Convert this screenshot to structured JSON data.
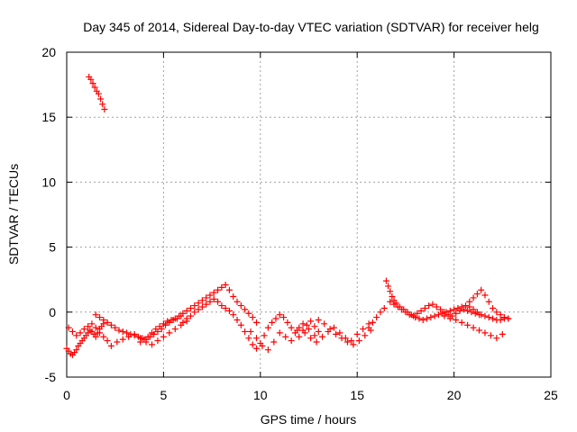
{
  "chart_data": {
    "type": "scatter",
    "title": "Day 345 of 2014, Sidereal Day-to-day VTEC variation (SDTVAR) for receiver helg",
    "xlabel": "GPS time / hours",
    "ylabel": "SDTVAR / TECUs",
    "xlim": [
      0,
      25
    ],
    "ylim": [
      -5,
      20
    ],
    "xticks": [
      0,
      5,
      10,
      15,
      20,
      25
    ],
    "xtick_labels": [
      "0",
      "5",
      "10",
      "15",
      "20",
      "25"
    ],
    "yticks": [
      -5,
      0,
      5,
      10,
      15,
      20
    ],
    "ytick_labels": [
      "-5",
      "0",
      "5",
      "10",
      "15",
      "20"
    ],
    "grid": true,
    "marker": "+",
    "color": "#ff0000",
    "series": [
      {
        "name": "SDTVAR",
        "x": [
          0.0,
          0.1,
          0.2,
          0.3,
          0.4,
          0.5,
          0.6,
          0.7,
          0.8,
          0.9,
          1.0,
          1.1,
          1.2,
          1.3,
          1.4,
          1.5,
          1.6,
          1.7,
          1.8,
          1.9,
          0.1,
          0.3,
          0.5,
          0.7,
          0.9,
          1.1,
          1.3,
          1.5,
          1.7,
          1.9,
          2.1,
          1.15,
          1.25,
          1.35,
          1.45,
          1.55,
          1.65,
          1.75,
          1.85,
          1.95,
          1.5,
          1.7,
          1.9,
          2.1,
          2.3,
          2.5,
          2.7,
          2.9,
          3.1,
          3.3,
          3.5,
          3.7,
          3.9,
          4.1,
          4.3,
          4.5,
          4.7,
          4.9,
          5.1,
          5.3,
          5.5,
          5.7,
          5.9,
          2.3,
          2.6,
          2.9,
          3.2,
          3.5,
          3.8,
          4.1,
          4.4,
          4.7,
          5.0,
          5.3,
          5.6,
          5.9,
          6.2,
          3.8,
          4.0,
          4.2,
          4.4,
          4.6,
          4.8,
          5.0,
          5.2,
          5.4,
          5.6,
          5.8,
          6.0,
          6.2,
          6.4,
          6.6,
          6.8,
          7.0,
          7.2,
          7.4,
          7.6,
          7.8,
          8.0,
          8.2,
          8.4,
          8.6,
          8.8,
          9.0,
          9.2,
          9.4,
          9.6,
          9.8,
          6.0,
          6.2,
          6.4,
          6.6,
          6.8,
          7.0,
          7.2,
          7.4,
          7.6,
          7.8,
          8.0,
          8.2,
          8.4,
          8.6,
          8.8,
          9.0,
          9.2,
          9.4,
          9.6,
          9.8,
          10.0,
          10.2,
          10.4,
          10.6,
          10.8,
          11.0,
          11.2,
          11.4,
          11.6,
          11.8,
          12.0,
          12.2,
          12.4,
          12.6,
          12.8,
          13.0,
          9.5,
          9.8,
          10.1,
          10.4,
          10.7,
          11.0,
          11.3,
          11.6,
          11.9,
          12.2,
          12.5,
          12.8,
          12.0,
          12.3,
          12.6,
          12.9,
          13.2,
          13.5,
          13.8,
          14.1,
          14.4,
          14.7,
          15.0,
          15.3,
          15.6,
          13.0,
          13.3,
          13.6,
          13.9,
          14.2,
          14.5,
          14.8,
          15.1,
          15.4,
          15.7,
          15.6,
          15.8,
          16.0,
          16.2,
          16.4,
          16.5,
          16.6,
          16.7,
          16.8,
          16.9,
          17.0,
          17.2,
          17.4,
          17.6,
          17.8,
          18.0,
          18.2,
          18.4,
          18.6,
          18.8,
          19.0,
          19.2,
          19.4,
          19.6,
          19.8,
          20.0,
          20.2,
          20.4,
          20.6,
          20.8,
          21.0,
          21.2,
          21.4,
          21.6,
          21.8,
          22.0,
          22.2,
          22.4,
          22.6,
          22.8,
          19.5,
          19.8,
          20.1,
          20.4,
          20.7,
          21.0,
          21.3,
          21.6,
          21.9,
          22.2,
          22.5,
          20.8,
          21.0,
          21.2,
          21.4,
          21.6,
          21.8,
          22.0,
          22.2,
          22.4,
          22.6,
          22.8,
          16.7,
          16.9,
          17.1,
          17.3,
          17.5,
          17.7,
          17.9,
          18.1,
          18.3,
          18.5,
          18.7,
          18.9,
          19.1,
          19.3,
          19.5,
          19.7,
          19.9,
          20.1,
          20.3,
          20.5,
          20.7,
          20.9,
          21.1,
          21.3
        ],
        "y": [
          -2.8,
          -3.0,
          -3.2,
          -3.3,
          -3.1,
          -2.9,
          -2.6,
          -2.4,
          -2.2,
          -2.0,
          -1.8,
          -1.6,
          -1.4,
          -1.5,
          -1.7,
          -1.9,
          -1.6,
          -1.3,
          -1.1,
          -0.9,
          -1.2,
          -1.5,
          -1.8,
          -1.6,
          -1.3,
          -1.1,
          -0.9,
          -1.2,
          -1.6,
          -1.9,
          -2.2,
          18.1,
          17.9,
          17.6,
          17.3,
          17.0,
          16.8,
          16.4,
          16.0,
          15.6,
          -0.2,
          -0.4,
          -0.6,
          -0.8,
          -1.0,
          -1.2,
          -1.4,
          -1.5,
          -1.6,
          -1.7,
          -1.8,
          -1.9,
          -2.0,
          -2.1,
          -1.9,
          -1.7,
          -1.5,
          -1.3,
          -1.0,
          -0.8,
          -0.6,
          -0.5,
          -0.3,
          -2.6,
          -2.3,
          -2.1,
          -1.9,
          -1.7,
          -2.0,
          -2.3,
          -2.5,
          -2.2,
          -1.9,
          -1.6,
          -1.3,
          -1.0,
          -0.7,
          -2.3,
          -2.1,
          -1.9,
          -1.6,
          -1.3,
          -1.1,
          -0.9,
          -0.7,
          -0.6,
          -0.5,
          -0.3,
          -0.1,
          0.1,
          0.3,
          0.5,
          0.7,
          0.9,
          1.1,
          1.3,
          1.5,
          1.7,
          1.9,
          2.1,
          1.7,
          1.2,
          0.8,
          0.5,
          0.2,
          -0.1,
          -0.4,
          -0.8,
          -0.8,
          -0.5,
          -0.3,
          0.0,
          0.2,
          0.4,
          0.6,
          0.8,
          1.0,
          0.8,
          0.5,
          0.3,
          0.1,
          -0.2,
          -0.6,
          -1.0,
          -1.5,
          -2.0,
          -2.5,
          -2.8,
          -2.4,
          -1.8,
          -1.2,
          -0.8,
          -0.5,
          -0.2,
          -0.4,
          -0.8,
          -1.2,
          -1.6,
          -1.9,
          -1.4,
          -1.0,
          -0.7,
          -1.1,
          -1.5,
          -1.5,
          -2.0,
          -2.6,
          -2.9,
          -2.3,
          -1.6,
          -1.9,
          -2.2,
          -1.4,
          -0.9,
          -1.3,
          -1.8,
          -1.2,
          -1.6,
          -2.0,
          -2.3,
          -1.9,
          -1.5,
          -1.2,
          -1.6,
          -2.0,
          -2.2,
          -1.7,
          -1.3,
          -0.9,
          -0.6,
          -0.9,
          -1.3,
          -1.7,
          -2.0,
          -2.3,
          -2.5,
          -2.2,
          -1.8,
          -1.4,
          -1.2,
          -0.8,
          -0.4,
          0.0,
          0.3,
          2.4,
          2.0,
          1.6,
          1.2,
          0.9,
          0.7,
          0.4,
          0.2,
          0.0,
          -0.2,
          -0.4,
          -0.5,
          -0.6,
          -0.5,
          -0.4,
          -0.3,
          -0.2,
          -0.1,
          0.0,
          0.1,
          0.2,
          0.3,
          0.4,
          0.5,
          0.8,
          1.1,
          1.4,
          1.7,
          1.3,
          0.8,
          0.3,
          0.0,
          -0.2,
          -0.4,
          -0.5,
          -0.3,
          -0.5,
          -0.6,
          -0.8,
          -1.0,
          -1.2,
          -1.4,
          -1.6,
          -1.8,
          -2.0,
          -1.7,
          0.4,
          0.2,
          0.0,
          -0.2,
          -0.3,
          -0.4,
          -0.5,
          -0.6,
          -0.6,
          -0.5,
          -0.5,
          0.8,
          0.6,
          0.4,
          0.2,
          0.0,
          -0.2,
          -0.3,
          -0.1,
          0.1,
          0.3,
          0.5,
          0.6,
          0.4,
          0.2,
          0.0,
          -0.2,
          -0.3,
          -0.1,
          0.1,
          0.2,
          0.1,
          0.0,
          -0.1,
          -0.2
        ]
      }
    ]
  }
}
